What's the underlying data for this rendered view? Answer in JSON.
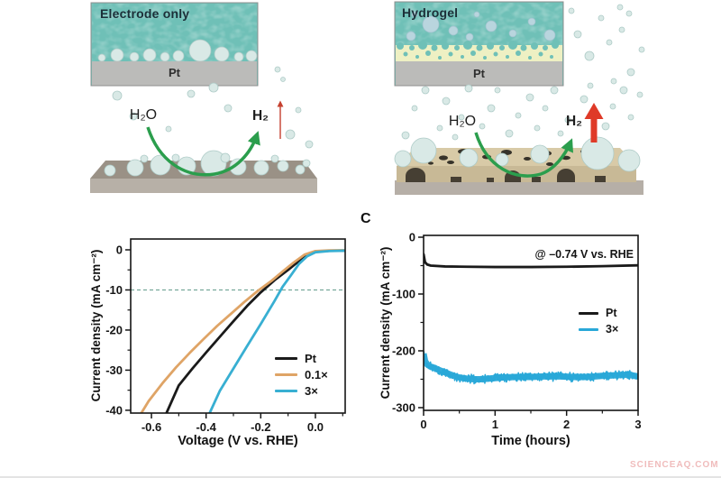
{
  "illustrations": {
    "electrode_only": {
      "title": "Electrode only",
      "electrode": "Pt",
      "reactant": "H₂O",
      "product": "H₂"
    },
    "hydrogel": {
      "title": "Hydrogel",
      "electrode": "Pt",
      "reactant": "H₂O",
      "product": "H₂"
    },
    "colors": {
      "water": "#6fc0b7",
      "bubble": "#d9e9e6",
      "pt_bar": "#bbbbb9",
      "hydrogel_layer": "#eef0c3",
      "scaffold_top": "#d8caa7",
      "scaffold_front": "#c8b996",
      "slab_top": "#9a9186",
      "slab_front": "#b7b0a7",
      "base": "#b6afa7",
      "arrow_green": "#2b9e4d",
      "arrow_red_thin": "#c5402f",
      "arrow_red_thick": "#df3a28"
    }
  },
  "chart_data": [
    {
      "type": "line",
      "xlabel": "Voltage (V vs. RHE)",
      "ylabel": "Current density (mA cm⁻²)",
      "xlim": [
        -0.676,
        0.109
      ],
      "ylim": [
        -40.7,
        2.7
      ],
      "xticks": [
        -0.6,
        -0.4,
        -0.2,
        0.0
      ],
      "xtick_labels": [
        "-0.6",
        "-0.4",
        "-0.2",
        "0.0"
      ],
      "yticks": [
        0,
        -10,
        -20,
        -30,
        -40
      ],
      "ytick_labels": [
        "0",
        "-10",
        "-20",
        "-30",
        "-40"
      ],
      "x_minor_step": 0.1,
      "y_minor_step": 5,
      "grid": false,
      "legend_position": "inside lower-right",
      "reference_line": {
        "y": -10,
        "style": "dashed",
        "color": "#76a89b"
      },
      "series": [
        {
          "name": "Pt",
          "color": "#1a1a1a",
          "points": [
            [
              0.109,
              -0.2
            ],
            [
              0.05,
              -0.25
            ],
            [
              0.0,
              -0.45
            ],
            [
              -0.03,
              -1.2
            ],
            [
              -0.06,
              -2.8
            ],
            [
              -0.1,
              -5.0
            ],
            [
              -0.15,
              -7.6
            ],
            [
              -0.2,
              -10.6
            ],
            [
              -0.25,
              -14.0
            ],
            [
              -0.3,
              -17.8
            ],
            [
              -0.35,
              -21.7
            ],
            [
              -0.4,
              -25.6
            ],
            [
              -0.45,
              -29.6
            ],
            [
              -0.5,
              -33.8
            ],
            [
              -0.545,
              -40.7
            ]
          ]
        },
        {
          "name": "0.1×",
          "color": "#dfa466",
          "points": [
            [
              0.109,
              -0.1
            ],
            [
              0.05,
              -0.15
            ],
            [
              0.0,
              -0.3
            ],
            [
              -0.04,
              -1.2
            ],
            [
              -0.08,
              -3.2
            ],
            [
              -0.12,
              -5.4
            ],
            [
              -0.16,
              -7.7
            ],
            [
              -0.21,
              -10.2
            ],
            [
              -0.26,
              -13.0
            ],
            [
              -0.31,
              -16.0
            ],
            [
              -0.36,
              -19.0
            ],
            [
              -0.41,
              -22.3
            ],
            [
              -0.46,
              -25.7
            ],
            [
              -0.51,
              -29.3
            ],
            [
              -0.56,
              -33.3
            ],
            [
              -0.61,
              -37.7
            ],
            [
              -0.637,
              -40.7
            ]
          ]
        },
        {
          "name": "3×",
          "color": "#38afd2",
          "points": [
            [
              0.109,
              -0.2
            ],
            [
              0.05,
              -0.3
            ],
            [
              0.0,
              -0.6
            ],
            [
              -0.03,
              -1.6
            ],
            [
              -0.06,
              -3.5
            ],
            [
              -0.09,
              -6.4
            ],
            [
              -0.12,
              -9.2
            ],
            [
              -0.15,
              -12.8
            ],
            [
              -0.2,
              -18.5
            ],
            [
              -0.25,
              -24.0
            ],
            [
              -0.3,
              -29.6
            ],
            [
              -0.35,
              -35.2
            ],
            [
              -0.387,
              -40.7
            ]
          ]
        }
      ]
    },
    {
      "type": "line",
      "panel_label": "C",
      "annotation": "@ –0.74 V vs. RHE",
      "xlabel": "Time (hours)",
      "ylabel": "Current density (mA cm⁻²)",
      "xlim": [
        0,
        3
      ],
      "ylim": [
        -304.8,
        3.2
      ],
      "xticks": [
        0,
        1,
        2,
        3
      ],
      "xtick_labels": [
        "0",
        "1",
        "2",
        "3"
      ],
      "yticks": [
        0,
        -100,
        -200,
        -300
      ],
      "ytick_labels": [
        "0",
        "-100",
        "-200",
        "-300"
      ],
      "x_minor_step": 0.5,
      "y_minor_step": 50,
      "grid": false,
      "legend_position": "inside middle-right",
      "series": [
        {
          "name": "Pt",
          "color": "#1a1a1a",
          "points": [
            [
              0,
              -30
            ],
            [
              0.02,
              -44
            ],
            [
              0.05,
              -48
            ],
            [
              0.1,
              -50
            ],
            [
              0.3,
              -51.5
            ],
            [
              0.6,
              -52
            ],
            [
              1.0,
              -52.5
            ],
            [
              1.5,
              -52.5
            ],
            [
              2.0,
              -52
            ],
            [
              2.5,
              -51
            ],
            [
              3.0,
              -49.5
            ]
          ]
        },
        {
          "name": "3×",
          "color": "#29a8d8",
          "noise_amplitude": 7,
          "points": [
            [
              0,
              -205
            ],
            [
              0.02,
              -218
            ],
            [
              0.05,
              -224
            ],
            [
              0.1,
              -228
            ],
            [
              0.15,
              -230
            ],
            [
              0.2,
              -233
            ],
            [
              0.3,
              -238
            ],
            [
              0.4,
              -243
            ],
            [
              0.5,
              -247
            ],
            [
              0.6,
              -249
            ],
            [
              0.7,
              -250
            ],
            [
              0.8,
              -250
            ],
            [
              0.9,
              -249
            ],
            [
              1.0,
              -248
            ],
            [
              1.1,
              -247
            ],
            [
              1.3,
              -246
            ],
            [
              1.5,
              -246
            ],
            [
              1.7,
              -245
            ],
            [
              1.9,
              -245
            ],
            [
              2.1,
              -246
            ],
            [
              2.3,
              -246
            ],
            [
              2.5,
              -244
            ],
            [
              2.7,
              -243
            ],
            [
              2.85,
              -242
            ],
            [
              3.0,
              -245
            ]
          ]
        }
      ]
    }
  ],
  "watermark": {
    "text": "SCIENCEAQ.COM",
    "color": "#f0bcbc"
  }
}
